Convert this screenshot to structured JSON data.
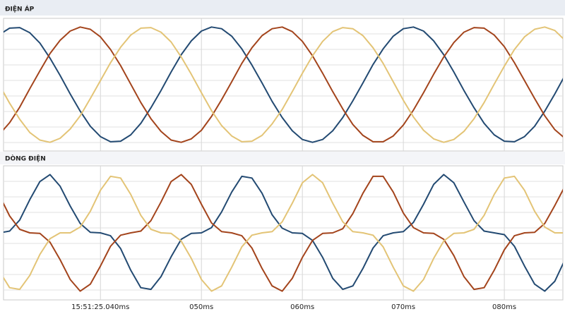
{
  "chart_data": [
    {
      "type": "line",
      "title": "ĐIỆN ÁP",
      "xlim": [
        30.4,
        85.8
      ],
      "ylim": [
        -1.15,
        1.15
      ],
      "x": [
        30,
        31,
        32,
        33,
        34,
        35,
        36,
        37,
        38,
        39,
        40,
        41,
        42,
        43,
        44,
        45,
        46,
        47,
        48,
        49,
        50,
        51,
        52,
        53,
        54,
        55,
        56,
        57,
        58,
        59,
        60,
        61,
        62,
        63,
        64,
        65,
        66,
        67,
        68,
        69,
        70,
        71,
        72,
        73,
        74,
        75,
        76,
        77,
        78,
        79,
        80,
        81,
        82,
        83,
        84,
        85,
        86
      ],
      "series": [
        {
          "color": "#234a72",
          "values": [
            0.87,
            0.98,
            0.99,
            0.9,
            0.72,
            0.46,
            0.16,
            -0.16,
            -0.46,
            -0.72,
            -0.9,
            -0.99,
            -0.98,
            -0.87,
            -0.67,
            -0.4,
            -0.1,
            0.22,
            0.52,
            0.76,
            0.93,
            1.0,
            0.97,
            0.84,
            0.62,
            0.34,
            0.03,
            -0.29,
            -0.57,
            -0.8,
            -0.95,
            -1.0,
            -0.95,
            -0.8,
            -0.57,
            -0.28,
            0.03,
            0.35,
            0.62,
            0.84,
            0.97,
            1.0,
            0.93,
            0.76,
            0.52,
            0.22,
            -0.1,
            -0.4,
            -0.67,
            -0.87,
            -0.98,
            -0.99,
            -0.9,
            -0.72,
            -0.46,
            -0.16,
            0.16
          ]
        },
        {
          "color": "#a3441c",
          "values": [
            -0.86,
            -0.66,
            -0.39,
            -0.07,
            0.24,
            0.54,
            0.77,
            0.93,
            1.0,
            0.96,
            0.83,
            0.61,
            0.33,
            0.01,
            -0.31,
            -0.59,
            -0.81,
            -0.96,
            -1.0,
            -0.94,
            -0.79,
            -0.55,
            -0.26,
            0.05,
            0.37,
            0.64,
            0.85,
            0.97,
            1.0,
            0.92,
            0.75,
            0.5,
            0.2,
            -0.12,
            -0.42,
            -0.69,
            -0.88,
            -0.99,
            -0.99,
            -0.89,
            -0.7,
            -0.44,
            -0.14,
            0.18,
            0.48,
            0.73,
            0.91,
            0.99,
            0.98,
            0.86,
            0.66,
            0.38,
            0.07,
            -0.24,
            -0.54,
            -0.78,
            -0.93
          ]
        },
        {
          "color": "#e3c476",
          "values": [
            -0.01,
            -0.32,
            -0.6,
            -0.83,
            -0.96,
            -1.0,
            -0.93,
            -0.77,
            -0.54,
            -0.24,
            0.07,
            0.38,
            0.65,
            0.86,
            0.98,
            0.99,
            0.91,
            0.74,
            0.48,
            0.18,
            -0.14,
            -0.45,
            -0.71,
            -0.89,
            -0.99,
            -0.98,
            -0.88,
            -0.68,
            -0.43,
            -0.12,
            0.2,
            0.5,
            0.75,
            0.92,
            0.99,
            0.97,
            0.85,
            0.64,
            0.37,
            0.05,
            -0.27,
            -0.56,
            -0.79,
            -0.94,
            -1.0,
            -0.95,
            -0.81,
            -0.59,
            -0.31,
            0.01,
            0.32,
            0.61,
            0.83,
            0.96,
            1.0,
            0.94,
            0.77
          ]
        }
      ]
    },
    {
      "type": "line",
      "title": "DÒNG ĐIỆN",
      "xlim": [
        30.4,
        85.8
      ],
      "ylim": [
        -1.15,
        1.15
      ],
      "x": [
        30,
        31,
        32,
        33,
        34,
        35,
        36,
        37,
        38,
        39,
        40,
        41,
        42,
        43,
        44,
        45,
        46,
        47,
        48,
        49,
        50,
        51,
        52,
        53,
        54,
        55,
        56,
        57,
        58,
        59,
        60,
        61,
        62,
        63,
        64,
        65,
        66,
        67,
        68,
        69,
        70,
        71,
        72,
        73,
        74,
        75,
        76,
        77,
        78,
        79,
        80,
        81,
        82,
        83,
        84,
        85,
        86
      ],
      "xticks": [
        {
          "value": 40,
          "label": "15:51:25.040ms"
        },
        {
          "value": 50,
          "label": "050ms"
        },
        {
          "value": 60,
          "label": "060ms"
        },
        {
          "value": 70,
          "label": "070ms"
        },
        {
          "value": 80,
          "label": "080ms"
        }
      ],
      "series": [
        {
          "color": "#234a72",
          "values": [
            0,
            0.03,
            0.22,
            0.57,
            0.88,
            1.0,
            0.8,
            0.46,
            0.16,
            0.01,
            0,
            -0.05,
            -0.27,
            -0.64,
            -0.94,
            -0.97,
            -0.75,
            -0.41,
            -0.11,
            -0.01,
            0,
            0.09,
            0.36,
            0.7,
            0.97,
            0.94,
            0.68,
            0.31,
            0.08,
            0,
            -0.01,
            -0.13,
            -0.42,
            -0.78,
            -0.97,
            -0.91,
            -0.61,
            -0.26,
            -0.05,
            0,
            0.02,
            0.18,
            0.49,
            0.83,
            1.0,
            0.86,
            0.53,
            0.21,
            0.03,
            0,
            -0.03,
            -0.23,
            -0.57,
            -0.88,
            -1.0,
            -0.83,
            -0.46
          ]
        },
        {
          "color": "#a3441c",
          "values": [
            0.64,
            0.29,
            0.06,
            0,
            -0.01,
            -0.16,
            -0.46,
            -0.8,
            -1.0,
            -0.88,
            -0.57,
            -0.23,
            -0.04,
            0,
            0.03,
            0.21,
            0.53,
            0.88,
            1.0,
            0.83,
            0.49,
            0.17,
            0.02,
            0,
            -0.05,
            -0.26,
            -0.61,
            -0.91,
            -1.0,
            -0.78,
            -0.42,
            -0.13,
            -0.01,
            0,
            0.07,
            0.33,
            0.68,
            0.97,
            0.97,
            0.7,
            0.34,
            0.09,
            0,
            -0.01,
            -0.11,
            -0.39,
            -0.75,
            -0.97,
            -0.94,
            -0.64,
            -0.29,
            -0.05,
            0,
            0.01,
            0.16,
            0.47,
            0.8
          ]
        },
        {
          "color": "#e3c476",
          "values": [
            -0.66,
            -0.94,
            -0.97,
            -0.73,
            -0.37,
            -0.1,
            0,
            0,
            0.1,
            0.37,
            0.73,
            0.97,
            0.94,
            0.66,
            0.3,
            0.06,
            0,
            -0.01,
            -0.14,
            -0.44,
            -0.8,
            -1.0,
            -0.91,
            -0.59,
            -0.24,
            -0.04,
            0,
            0.02,
            0.19,
            0.51,
            0.86,
            1.0,
            0.86,
            0.51,
            0.19,
            0.02,
            0,
            -0.04,
            -0.24,
            -0.59,
            -0.91,
            -1.0,
            -0.8,
            -0.44,
            -0.14,
            -0.01,
            0,
            0.06,
            0.3,
            0.66,
            0.94,
            0.97,
            0.73,
            0.37,
            0.1,
            0,
            0
          ]
        }
      ]
    }
  ]
}
